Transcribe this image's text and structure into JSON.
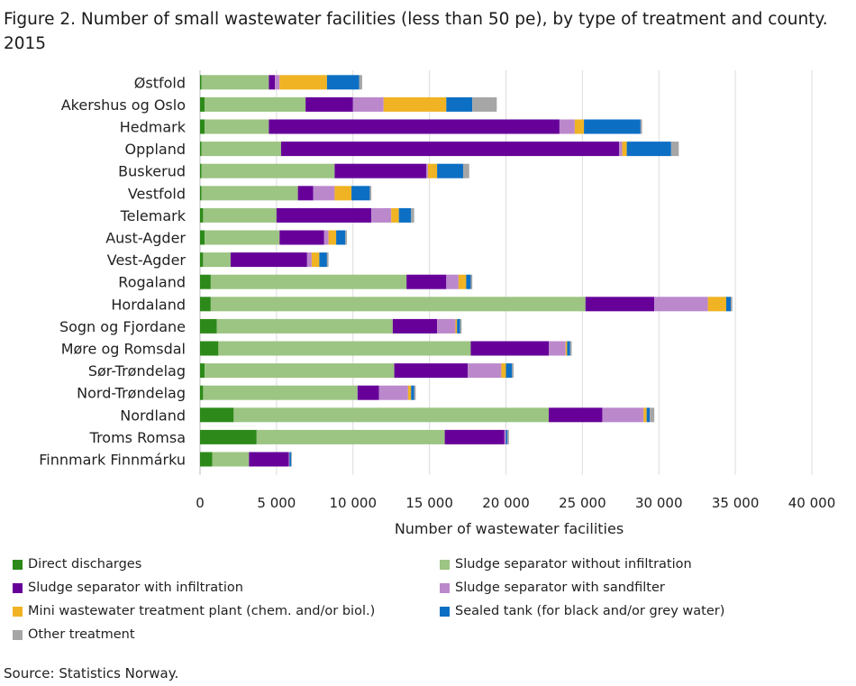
{
  "title": "Figure 2. Number of small wastewater facilities (less than 50 pe), by type of treatment and county. 2015",
  "source": "Source: Statistics Norway.",
  "chart_data": {
    "type": "bar",
    "orientation": "horizontal",
    "stacked": true,
    "xlabel": "Number of wastewater facilities",
    "xlim": [
      0,
      40000
    ],
    "xticks": [
      0,
      5000,
      10000,
      15000,
      20000,
      25000,
      30000,
      35000,
      40000
    ],
    "xtick_labels": [
      "0",
      "5 000",
      "10 000",
      "15 000",
      "20 000",
      "25 000",
      "30 000",
      "35 000",
      "40 000"
    ],
    "legend_position": "bottom",
    "grid": "vertical",
    "categories": [
      "Østfold",
      "Akershus og Oslo",
      "Hedmark",
      "Oppland",
      "Buskerud",
      "Vestfold",
      "Telemark",
      "Aust-Agder",
      "Vest-Agder",
      "Rogaland",
      "Hordaland",
      "Sogn og Fjordane",
      "Møre og Romsdal",
      "Sør-Trøndelag",
      "Nord-Trøndelag",
      "Nordland",
      "Troms Romsa",
      "Finnmark Finnmárku"
    ],
    "series": [
      {
        "name": "Direct discharges",
        "color": "#2d8a1a",
        "values": [
          100,
          300,
          300,
          100,
          100,
          100,
          200,
          300,
          200,
          700,
          700,
          1100,
          1200,
          300,
          200,
          2200,
          3700,
          800
        ]
      },
      {
        "name": "Sludge separator without infiltration",
        "color": "#9cc482",
        "values": [
          4400,
          6600,
          4200,
          5200,
          8700,
          6300,
          4800,
          4900,
          1800,
          12800,
          24500,
          11500,
          16500,
          12400,
          10100,
          20600,
          12300,
          2400
        ]
      },
      {
        "name": "Sludge separator with infiltration",
        "color": "#660099",
        "values": [
          400,
          3100,
          19000,
          22100,
          6000,
          1000,
          6200,
          2900,
          5000,
          2600,
          4500,
          2900,
          5100,
          4800,
          1400,
          3500,
          3900,
          2600
        ]
      },
      {
        "name": "Sludge separator with sandfilter",
        "color": "#bb88cc",
        "values": [
          300,
          2000,
          1000,
          200,
          100,
          1400,
          1300,
          300,
          300,
          800,
          3500,
          1200,
          1100,
          2200,
          1900,
          2700,
          100,
          50
        ]
      },
      {
        "name": "Mini wastewater treatment plant (chem. and/or biol.)",
        "color": "#f0b323",
        "values": [
          3100,
          4100,
          600,
          300,
          600,
          1100,
          500,
          500,
          500,
          500,
          1200,
          100,
          100,
          300,
          200,
          200,
          0,
          0
        ]
      },
      {
        "name": "Sealed tank (for black and/or grey water)",
        "color": "#0c6fc4",
        "values": [
          2100,
          1700,
          3700,
          2900,
          1700,
          1200,
          800,
          600,
          500,
          300,
          300,
          200,
          200,
          400,
          200,
          200,
          100,
          100
        ]
      },
      {
        "name": "Other treatment",
        "color": "#a6a6a6",
        "values": [
          200,
          1600,
          100,
          500,
          400,
          100,
          200,
          100,
          100,
          100,
          100,
          100,
          100,
          100,
          100,
          300,
          100,
          50
        ]
      }
    ]
  }
}
